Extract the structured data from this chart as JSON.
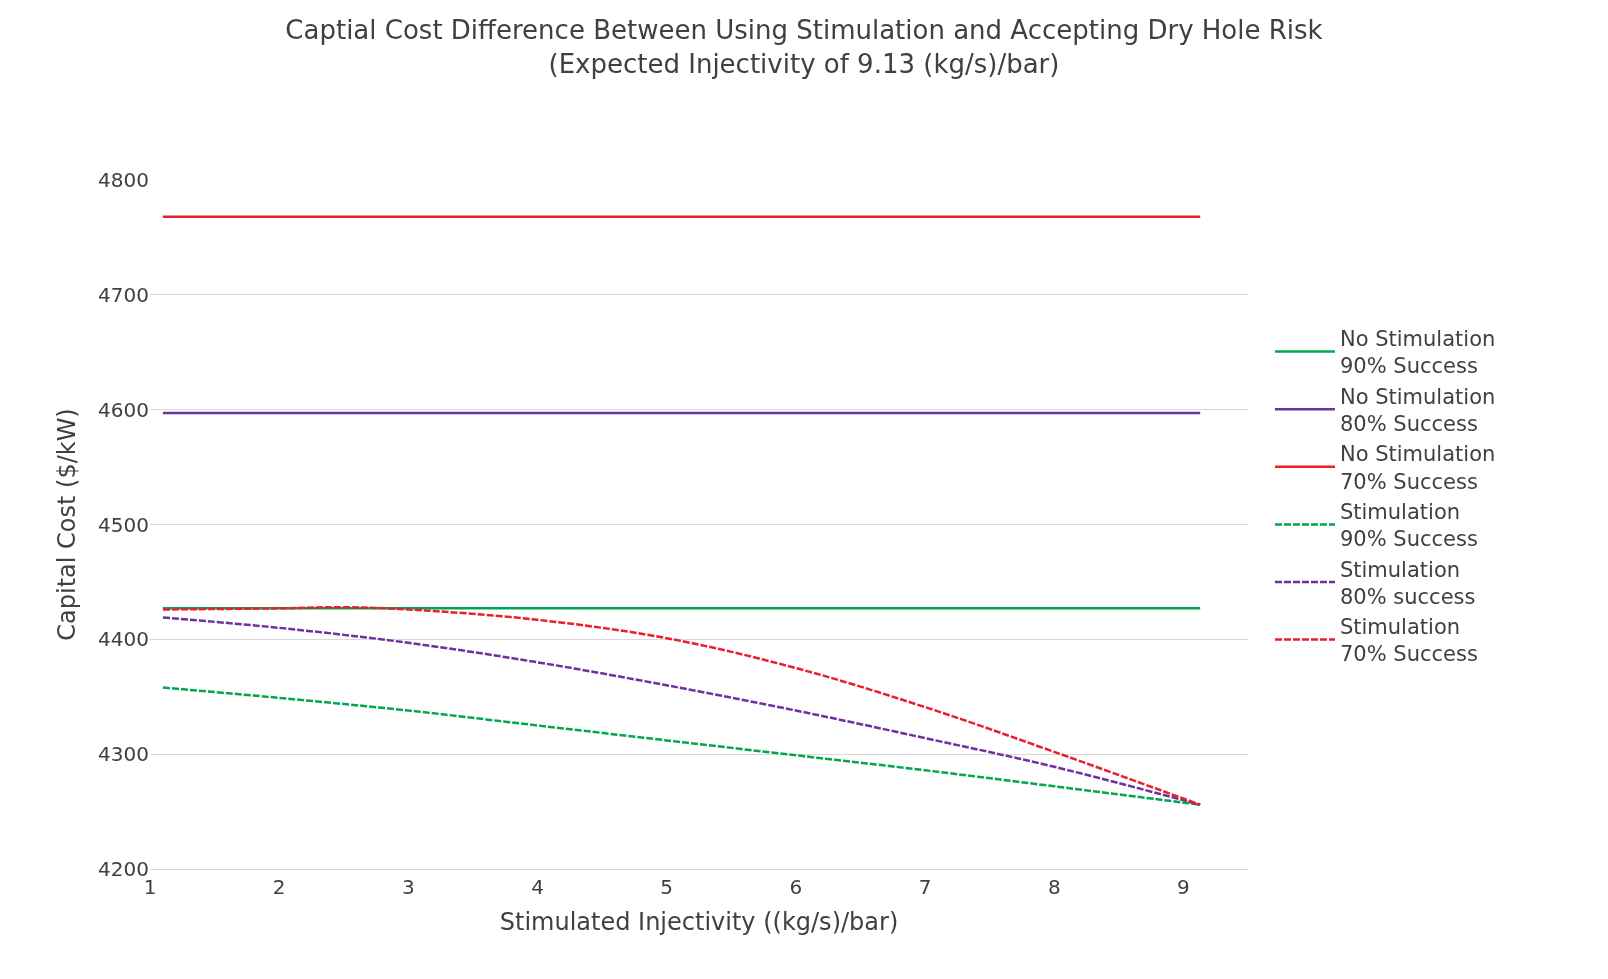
{
  "chart_data": {
    "type": "line",
    "title": "Captial Cost Difference Between Using Stimulation and Accepting Dry Hole Risk",
    "subtitle": "(Expected Injectivity of 9.13 (kg/s)/bar)",
    "xlabel": "Stimulated Injectivity ((kg/s)/bar)",
    "ylabel": "Capital Cost ($/kW)",
    "xlim": [
      1,
      9.5
    ],
    "xticks": [
      1,
      2,
      3,
      4,
      5,
      6,
      7,
      8,
      9
    ],
    "ylim": [
      4200,
      4800
    ],
    "yticks": [
      4200,
      4300,
      4400,
      4500,
      4600,
      4700,
      4800
    ],
    "grid": "y",
    "legend": "right",
    "series": [
      {
        "name": "No Stimulation 90% Success",
        "color": "#00a651",
        "line_style": "solid",
        "x": [
          1.1,
          9.13
        ],
        "values": [
          4427,
          4427
        ]
      },
      {
        "name": "No Stimulation 80% Success",
        "color": "#7030a0",
        "line_style": "solid",
        "x": [
          1.1,
          9.13
        ],
        "values": [
          4597,
          4597
        ]
      },
      {
        "name": "No Stimulation 70% Success",
        "color": "#e8202a",
        "line_style": "solid",
        "x": [
          1.1,
          9.13
        ],
        "values": [
          4768,
          4768
        ]
      },
      {
        "name": "Stimulation 90% Success",
        "color": "#00a651",
        "line_style": "dashed",
        "x": [
          1.1,
          2,
          3,
          4,
          5,
          6,
          7,
          8,
          9.13
        ],
        "values": [
          4358,
          4349,
          4338,
          4325,
          4312,
          4299,
          4286,
          4272,
          4256
        ]
      },
      {
        "name": "Stimulation 80% success",
        "color": "#7030a0",
        "line_style": "dashed",
        "x": [
          1.1,
          2,
          3,
          4,
          5,
          6,
          7,
          8,
          9.13
        ],
        "values": [
          4419,
          4410,
          4397,
          4380,
          4360,
          4338,
          4314,
          4289,
          4256
        ]
      },
      {
        "name": "Stimulation 70% Success",
        "color": "#e8202a",
        "line_style": "dashed",
        "x": [
          1.1,
          2,
          2.5,
          3,
          4,
          5,
          6,
          7,
          8,
          9.13
        ],
        "values": [
          4426,
          4427,
          4428,
          4426,
          4417,
          4401,
          4375,
          4341,
          4302,
          4256
        ]
      }
    ]
  }
}
